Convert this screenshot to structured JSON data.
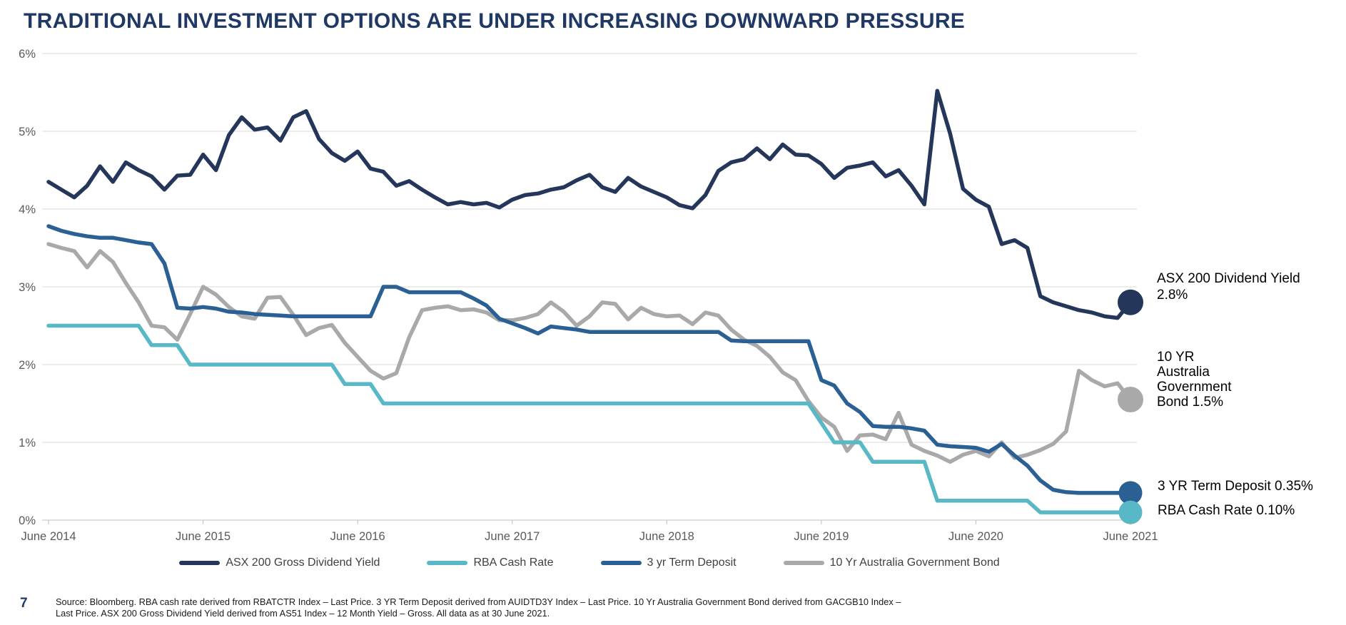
{
  "title": "TRADITIONAL INVESTMENT OPTIONS ARE UNDER INCREASING DOWNWARD PRESSURE",
  "colors": {
    "title": "#1F3864",
    "grid": "#DADADA",
    "axis": "#BFBFBF",
    "axis_text": "#595959"
  },
  "chart_data": {
    "type": "line",
    "title": "Traditional investment options yields, June 2014 - June 2021",
    "x_unit": "monthly",
    "xticklabels": [
      "June 2014",
      "June 2015",
      "June 2016",
      "June 2017",
      "June 2018",
      "June 2019",
      "June 2020",
      "June 2021"
    ],
    "yticklabels": [
      "0%",
      "1%",
      "2%",
      "3%",
      "4%",
      "5%",
      "6%"
    ],
    "ylim": [
      0,
      6
    ],
    "grid": "horizontal",
    "legend_position": "bottom",
    "series": [
      {
        "name": "ASX 200 Gross Dividend Yield",
        "color": "#24365A",
        "end_value": "2.8%",
        "values": [
          4.35,
          4.25,
          4.15,
          4.3,
          4.55,
          4.35,
          4.6,
          4.5,
          4.42,
          4.25,
          4.43,
          4.44,
          4.7,
          4.5,
          4.95,
          5.18,
          5.02,
          5.05,
          4.88,
          5.18,
          5.26,
          4.9,
          4.72,
          4.62,
          4.74,
          4.52,
          4.48,
          4.3,
          4.36,
          4.25,
          4.15,
          4.06,
          4.09,
          4.06,
          4.08,
          4.02,
          4.12,
          4.18,
          4.2,
          4.25,
          4.28,
          4.37,
          4.44,
          4.28,
          4.22,
          4.4,
          4.29,
          4.22,
          4.15,
          4.05,
          4.01,
          4.18,
          4.49,
          4.6,
          4.64,
          4.78,
          4.64,
          4.83,
          4.7,
          4.69,
          4.58,
          4.4,
          4.53,
          4.56,
          4.6,
          4.42,
          4.5,
          4.3,
          4.06,
          5.52,
          4.97,
          4.26,
          4.12,
          4.03,
          3.55,
          3.6,
          3.5,
          2.88,
          2.8,
          2.75,
          2.7,
          2.67,
          2.62,
          2.6,
          2.8
        ]
      },
      {
        "name": "RBA Cash Rate",
        "color": "#58B8C5",
        "end_value": "0.10%",
        "values": [
          2.5,
          2.5,
          2.5,
          2.5,
          2.5,
          2.5,
          2.5,
          2.5,
          2.25,
          2.25,
          2.25,
          2.0,
          2.0,
          2.0,
          2.0,
          2.0,
          2.0,
          2.0,
          2.0,
          2.0,
          2.0,
          2.0,
          2.0,
          1.75,
          1.75,
          1.75,
          1.5,
          1.5,
          1.5,
          1.5,
          1.5,
          1.5,
          1.5,
          1.5,
          1.5,
          1.5,
          1.5,
          1.5,
          1.5,
          1.5,
          1.5,
          1.5,
          1.5,
          1.5,
          1.5,
          1.5,
          1.5,
          1.5,
          1.5,
          1.5,
          1.5,
          1.5,
          1.5,
          1.5,
          1.5,
          1.5,
          1.5,
          1.5,
          1.5,
          1.5,
          1.25,
          1.0,
          1.0,
          1.0,
          0.75,
          0.75,
          0.75,
          0.75,
          0.75,
          0.25,
          0.25,
          0.25,
          0.25,
          0.25,
          0.25,
          0.25,
          0.25,
          0.1,
          0.1,
          0.1,
          0.1,
          0.1,
          0.1,
          0.1,
          0.1
        ]
      },
      {
        "name": "3 yr Term Deposit",
        "color": "#2B6095",
        "end_value": "0.35%",
        "values": [
          3.78,
          3.72,
          3.68,
          3.65,
          3.63,
          3.63,
          3.6,
          3.57,
          3.55,
          3.3,
          2.73,
          2.72,
          2.74,
          2.72,
          2.68,
          2.67,
          2.65,
          2.64,
          2.63,
          2.62,
          2.62,
          2.62,
          2.62,
          2.62,
          2.62,
          2.62,
          3.0,
          3.0,
          2.93,
          2.93,
          2.93,
          2.93,
          2.93,
          2.85,
          2.76,
          2.59,
          2.53,
          2.47,
          2.4,
          2.49,
          2.47,
          2.45,
          2.42,
          2.42,
          2.42,
          2.42,
          2.42,
          2.42,
          2.42,
          2.42,
          2.42,
          2.42,
          2.42,
          2.31,
          2.3,
          2.3,
          2.3,
          2.3,
          2.3,
          2.3,
          1.8,
          1.73,
          1.5,
          1.39,
          1.21,
          1.2,
          1.2,
          1.18,
          1.15,
          0.97,
          0.95,
          0.94,
          0.93,
          0.88,
          0.98,
          0.83,
          0.7,
          0.51,
          0.39,
          0.36,
          0.35,
          0.35,
          0.35,
          0.35,
          0.35
        ]
      },
      {
        "name": "10 Yr Australia Government Bond",
        "color": "#A9A9A9",
        "end_value": "1.5%",
        "values": [
          3.55,
          3.5,
          3.46,
          3.25,
          3.46,
          3.32,
          3.05,
          2.8,
          2.5,
          2.48,
          2.32,
          2.65,
          3.0,
          2.9,
          2.74,
          2.62,
          2.59,
          2.86,
          2.87,
          2.64,
          2.38,
          2.47,
          2.51,
          2.28,
          2.1,
          1.92,
          1.82,
          1.89,
          2.35,
          2.7,
          2.73,
          2.75,
          2.7,
          2.71,
          2.67,
          2.57,
          2.57,
          2.6,
          2.65,
          2.8,
          2.68,
          2.5,
          2.62,
          2.8,
          2.78,
          2.58,
          2.73,
          2.65,
          2.62,
          2.63,
          2.52,
          2.67,
          2.63,
          2.45,
          2.32,
          2.24,
          2.1,
          1.9,
          1.8,
          1.53,
          1.32,
          1.2,
          0.89,
          1.09,
          1.1,
          1.04,
          1.38,
          0.97,
          0.89,
          0.83,
          0.75,
          0.84,
          0.89,
          0.82,
          1.0,
          0.8,
          0.84,
          0.9,
          0.98,
          1.14,
          1.92,
          1.8,
          1.72,
          1.76,
          1.55
        ]
      }
    ]
  },
  "annotations": [
    {
      "lines": [
        "ASX 200 Dividend Yield",
        "2.8%"
      ]
    },
    {
      "lines": [
        "10 YR",
        "Australia",
        "Government",
        "Bond 1.5%"
      ]
    },
    {
      "lines": [
        "3 YR Term Deposit 0.35%"
      ]
    },
    {
      "lines": [
        "RBA Cash Rate 0.10%"
      ]
    }
  ],
  "legend": {
    "items": [
      {
        "label": "ASX 200 Gross Dividend Yield",
        "color": "#24365A"
      },
      {
        "label": "RBA Cash Rate",
        "color": "#58B8C5"
      },
      {
        "label": "3 yr Term Deposit",
        "color": "#2B6095"
      },
      {
        "label": "10 Yr Australia Government Bond",
        "color": "#A9A9A9"
      }
    ]
  },
  "footer": {
    "page_number": "7",
    "source_line1": "Source: Bloomberg. RBA cash rate derived from RBATCTR Index – Last Price. 3 YR Term Deposit derived from AUIDTD3Y Index – Last Price. 10 Yr Australia Government Bond derived from GACGB10 Index –",
    "source_line2": "Last Price. ASX 200 Gross Dividend Yield derived from AS51 Index – 12 Month Yield – Gross. All data as at 30 June 2021."
  }
}
